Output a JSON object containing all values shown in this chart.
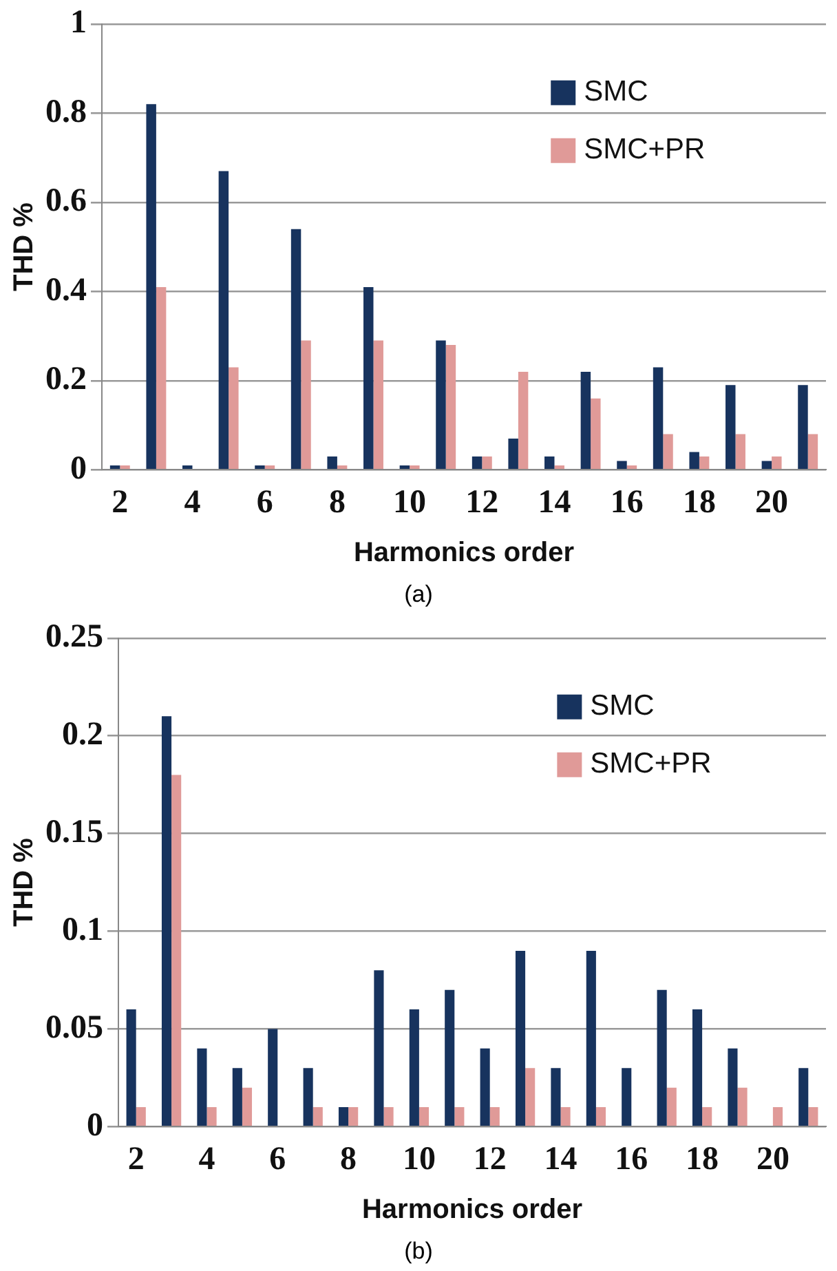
{
  "chart_data": [
    {
      "type": "bar",
      "xlabel": "Harmonics order",
      "ylabel": "THD %",
      "annotations": [
        "(a)"
      ],
      "categories": [
        "2",
        null,
        "4",
        null,
        "6",
        null,
        "8",
        null,
        "10",
        null,
        "12",
        null,
        "14",
        null,
        "16",
        null,
        "18",
        null,
        "20",
        null
      ],
      "series": [
        {
          "name": "SMC",
          "color": "#17335e",
          "values": [
            0.01,
            0.82,
            0.01,
            0.67,
            0.01,
            0.54,
            0.03,
            0.41,
            0.01,
            0.29,
            0.03,
            0.07,
            0.03,
            0.22,
            0.02,
            0.23,
            0.04,
            0.19,
            0.02,
            0.19
          ]
        },
        {
          "name": "SMC+PR",
          "color": "#e09a98",
          "values": [
            0.01,
            0.41,
            0,
            0.23,
            0.01,
            0.29,
            0.01,
            0.29,
            0.01,
            0.28,
            0.03,
            0.22,
            0.01,
            0.16,
            0.01,
            0.08,
            0.03,
            0.08,
            0.03,
            0.08
          ]
        }
      ],
      "ylim": [
        0,
        1
      ],
      "yticks": [
        0,
        0.2,
        0.4,
        0.6,
        0.8,
        1
      ],
      "grid": "y",
      "legend": "top right"
    },
    {
      "type": "bar",
      "xlabel": "Harmonics order",
      "ylabel": "THD %",
      "annotations": [
        "(b)"
      ],
      "categories": [
        "2",
        null,
        "4",
        null,
        "6",
        null,
        "8",
        null,
        "10",
        null,
        "12",
        null,
        "14",
        null,
        "16",
        null,
        "18",
        null,
        "20",
        null
      ],
      "series": [
        {
          "name": "SMC",
          "color": "#17335e",
          "values": [
            0.06,
            0.21,
            0.04,
            0.03,
            0.05,
            0.03,
            0.01,
            0.08,
            0.06,
            0.07,
            0.04,
            0.09,
            0.03,
            0.09,
            0.03,
            0.07,
            0.06,
            0.04,
            0,
            0.03
          ]
        },
        {
          "name": "SMC+PR",
          "color": "#e09a98",
          "values": [
            0.01,
            0.18,
            0.01,
            0.02,
            0,
            0.01,
            0.01,
            0.01,
            0.01,
            0.01,
            0.01,
            0.03,
            0.01,
            0.01,
            0,
            0.02,
            0.01,
            0.02,
            0.01,
            0.01
          ]
        }
      ],
      "ylim": [
        0,
        0.25
      ],
      "yticks": [
        0,
        0.05,
        0.1,
        0.15,
        0.2,
        0.25
      ],
      "grid": "y",
      "legend": "top right"
    }
  ]
}
